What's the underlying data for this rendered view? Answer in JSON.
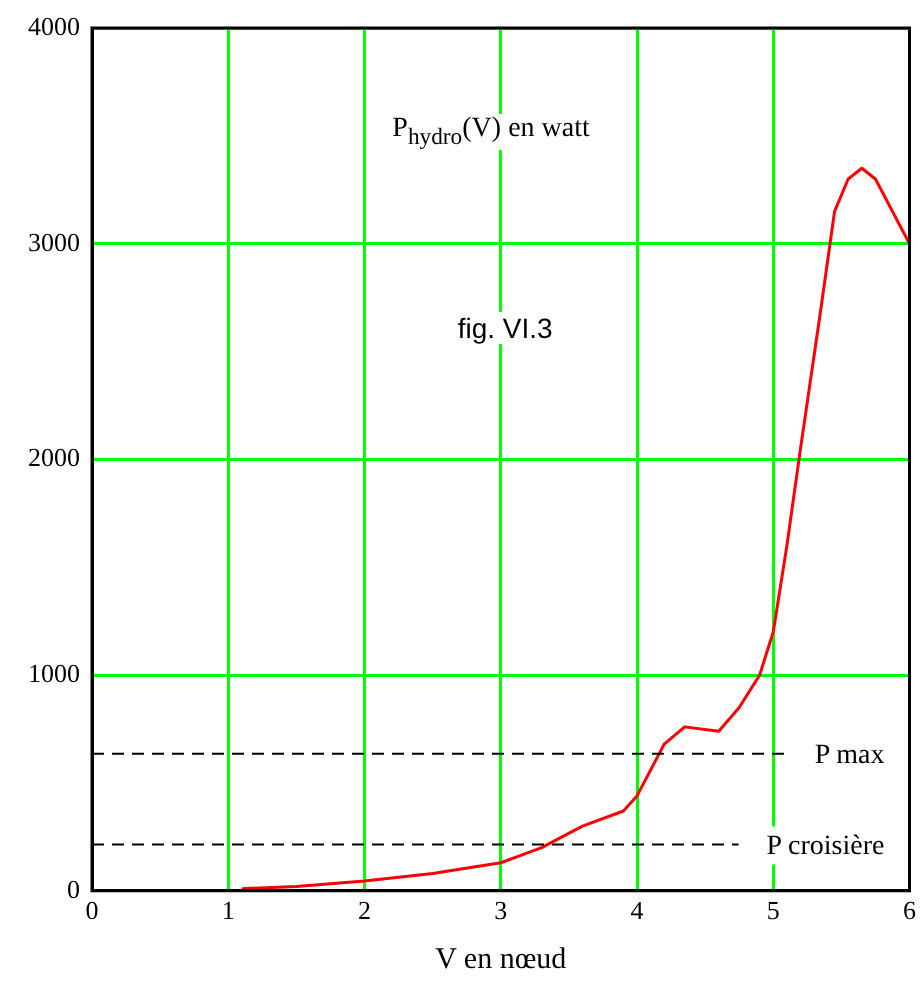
{
  "chart_data": {
    "type": "line",
    "ylabel": "P$_{hydro}$(V) en watt",
    "xlabel": "V en nœud",
    "annotations": [
      "fig. VI.3"
    ],
    "x": [
      1.1,
      1.5,
      2.0,
      2.5,
      3.0,
      3.3,
      3.6,
      3.9,
      4.0,
      4.2,
      4.35,
      4.6,
      4.75,
      4.9,
      5.0,
      5.1,
      5.2,
      5.35,
      5.45,
      5.55,
      5.65,
      5.75,
      6.0
    ],
    "series": [
      {
        "color": "#ff0000",
        "values": [
          10,
          20,
          45,
          80,
          130,
          200,
          300,
          370,
          440,
          680,
          760,
          740,
          850,
          1000,
          1200,
          1600,
          2050,
          2700,
          3150,
          3300,
          3350,
          3300,
          3000
        ]
      }
    ],
    "xlim": [
      0,
      6
    ],
    "xticks": [
      0,
      1,
      2,
      3,
      4,
      5,
      6
    ],
    "ylim": [
      0,
      4000
    ],
    "yticks": [
      0,
      1000,
      2000,
      3000,
      4000
    ],
    "grid": true,
    "legend": false,
    "marker": "none",
    "line_style": "solid",
    "ref_lines": [
      {
        "axis": "y",
        "value": 635,
        "label": "P max",
        "color": "#000000",
        "line_style": "dashed"
      },
      {
        "axis": "y",
        "value": 215,
        "label": "P croisière",
        "color": "#000000",
        "line_style": "dashed"
      }
    ]
  }
}
